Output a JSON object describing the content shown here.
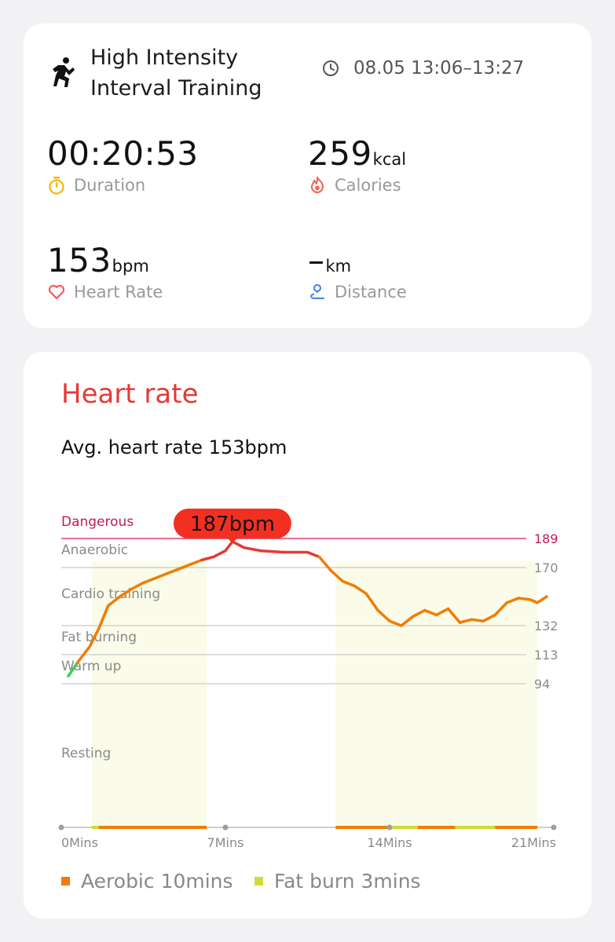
{
  "summary": {
    "workout_icon": "stair-stepper-figure-icon",
    "workout_name": "High Intensity Interval Training",
    "time_icon": "clock-icon",
    "time_range": "08.05 13:06–13:27",
    "metrics": {
      "duration": {
        "value": "00:20:53",
        "unit": "",
        "label": "Duration",
        "icon": "stopwatch-icon",
        "color": "#f2b705"
      },
      "calories": {
        "value": "259",
        "unit": "kcal",
        "label": "Calories",
        "icon": "flame-icon",
        "color": "#f26b5b"
      },
      "heart_rate": {
        "value": "153",
        "unit": "bpm",
        "label": "Heart Rate",
        "icon": "heart-icon",
        "color": "#f25c5c"
      },
      "distance": {
        "value": "–",
        "unit": "km",
        "label": "Distance",
        "icon": "route-pin-icon",
        "color": "#4a8fe0"
      }
    }
  },
  "heart_rate_card": {
    "title": "Heart rate",
    "avg_text": "Avg. heart rate 153bpm",
    "title_color": "#e53935",
    "peak_label": "187bpm",
    "legend": [
      {
        "label": "Aerobic 10mins",
        "color": "#f07d00"
      },
      {
        "label": "Fat burn 3mins",
        "color": "#cddc39"
      }
    ]
  },
  "chart_data": {
    "type": "line",
    "title": "",
    "xlabel": "",
    "ylabel": "",
    "x_unit": "min",
    "xlim": [
      0,
      21
    ],
    "x_ticks": [
      "0Mins",
      "7Mins",
      "14Mins",
      "21Mins"
    ],
    "x_tick_values": [
      0,
      7,
      14,
      21
    ],
    "zones": [
      {
        "name": "Dangerous",
        "threshold": 189
      },
      {
        "name": "Anaerobic",
        "threshold": 170
      },
      {
        "name": "Cardio training",
        "threshold": null
      },
      {
        "name": "Fat burning",
        "threshold": 132
      },
      {
        "name": "Warm up",
        "threshold": 113
      },
      {
        "name": "Resting",
        "threshold": 94
      }
    ],
    "y_ticks": [
      189,
      170,
      132,
      113,
      94
    ],
    "peak": {
      "x": 7.3,
      "y": 187,
      "label": "187bpm"
    },
    "shaded_intervals": [
      [
        1.3,
        6.2
      ],
      [
        11.7,
        20.3
      ]
    ],
    "series": [
      {
        "values": [
          [
            0.3,
            99
          ],
          [
            0.7,
            108
          ],
          [
            1.2,
            118
          ],
          [
            1.6,
            130
          ],
          [
            2.0,
            145
          ],
          [
            2.5,
            151
          ],
          [
            3.0,
            156
          ],
          [
            3.5,
            160
          ],
          [
            4.0,
            163
          ],
          [
            4.5,
            166
          ],
          [
            5.0,
            169
          ],
          [
            5.5,
            172
          ],
          [
            6.0,
            175
          ],
          [
            6.5,
            177
          ],
          [
            7.0,
            181
          ],
          [
            7.3,
            187
          ],
          [
            7.8,
            183
          ],
          [
            8.5,
            181
          ],
          [
            9.5,
            180
          ],
          [
            10.5,
            180
          ],
          [
            11.0,
            177
          ],
          [
            11.5,
            168
          ],
          [
            12.0,
            161
          ],
          [
            12.5,
            158
          ],
          [
            13.0,
            153
          ],
          [
            13.5,
            142
          ],
          [
            14.0,
            135
          ],
          [
            14.5,
            132
          ],
          [
            15.0,
            138
          ],
          [
            15.5,
            142
          ],
          [
            16.0,
            139
          ],
          [
            16.5,
            143
          ],
          [
            17.0,
            134
          ],
          [
            17.5,
            136
          ],
          [
            18.0,
            135
          ],
          [
            18.5,
            139
          ],
          [
            19.0,
            147
          ],
          [
            19.5,
            150
          ],
          [
            20.0,
            149
          ],
          [
            20.3,
            147
          ],
          [
            20.7,
            151
          ]
        ]
      }
    ],
    "bottom_bar": [
      {
        "from": 1.3,
        "to": 1.6,
        "zone": "Fat burn"
      },
      {
        "from": 1.6,
        "to": 6.2,
        "zone": "Aerobic"
      },
      {
        "from": 11.7,
        "to": 14.0,
        "zone": "Aerobic"
      },
      {
        "from": 14.0,
        "to": 15.2,
        "zone": "Fat burn"
      },
      {
        "from": 15.2,
        "to": 16.8,
        "zone": "Aerobic"
      },
      {
        "from": 16.8,
        "to": 18.5,
        "zone": "Fat burn"
      },
      {
        "from": 18.5,
        "to": 20.3,
        "zone": "Aerobic"
      }
    ],
    "grid": true
  }
}
